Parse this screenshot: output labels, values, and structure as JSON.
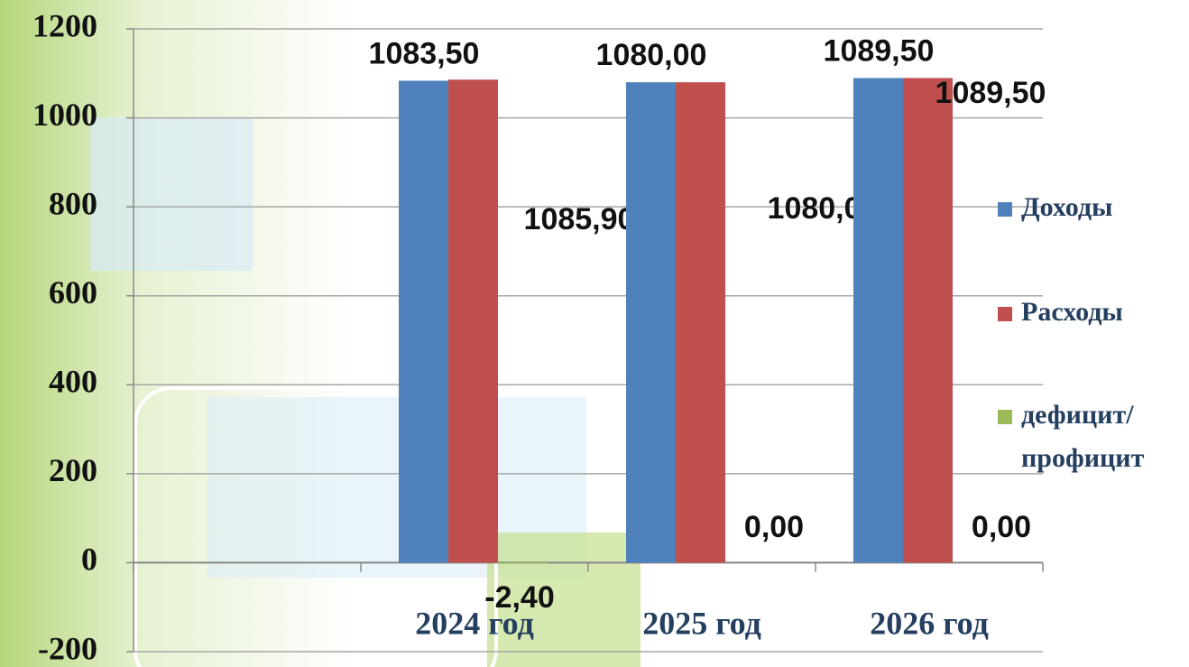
{
  "chart_data": {
    "type": "bar",
    "categories": [
      null,
      "2024 год",
      "2025 год",
      "2026 год"
    ],
    "series": [
      {
        "name": "Доходы",
        "color": "#4f81bd",
        "values": [
          null,
          1083.5,
          1080,
          1089.5
        ],
        "value_labels": [
          null,
          "1083,50",
          "1080,00",
          "1089,50"
        ]
      },
      {
        "name": "Расходы",
        "color": "#c0504d",
        "values": [
          null,
          1085.9,
          1080,
          1089.5
        ],
        "value_labels": [
          null,
          "1085,90",
          "1080,00",
          "1089,50"
        ]
      },
      {
        "name": "дефицит/ профицит",
        "color": "#9bbb59",
        "values": [
          null,
          -2.4,
          0,
          0
        ],
        "value_labels": [
          null,
          "-2,40",
          "0,00",
          "0,00"
        ]
      }
    ],
    "ylim": [
      -200,
      1200
    ],
    "yticks": [
      -200,
      0,
      200,
      400,
      600,
      800,
      1000,
      1200
    ],
    "grid": true,
    "legend": "right"
  }
}
